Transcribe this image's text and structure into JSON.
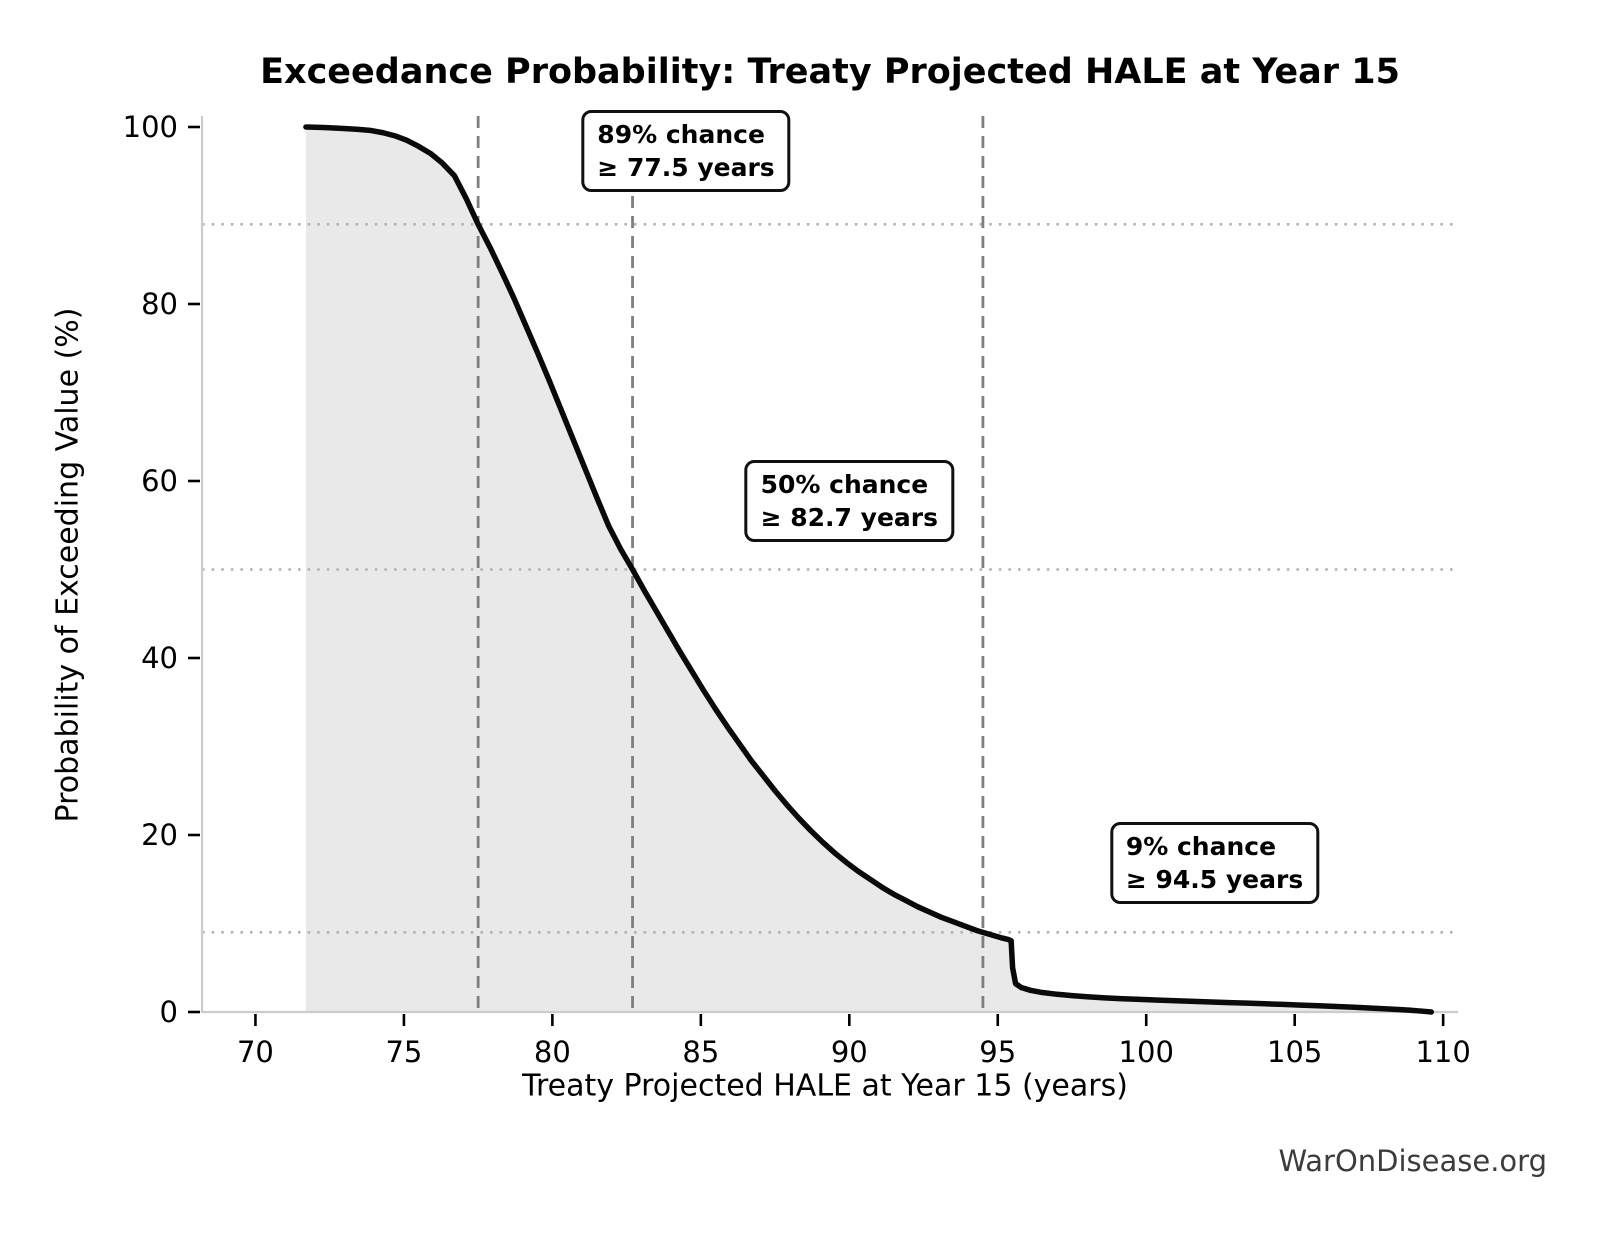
{
  "chart_data": {
    "type": "line",
    "title": "Exceedance Probability: Treaty Projected HALE at Year 15",
    "xlabel": "Treaty Projected HALE at Year 15 (years)",
    "ylabel": "Probability of Exceeding Value (%)",
    "watermark": "WarOnDisease.org",
    "xlim": [
      68.2,
      110.5
    ],
    "ylim": [
      0,
      101.3
    ],
    "x_ticks": [
      70,
      75,
      80,
      85,
      90,
      95,
      100,
      105,
      110
    ],
    "y_ticks": [
      0,
      20,
      40,
      60,
      80,
      100
    ],
    "grid": "off",
    "legend": "none",
    "reference_lines": {
      "vertical_dashed_x": [
        77.5,
        82.7,
        94.5
      ],
      "horizontal_dotted_y": [
        89,
        50,
        9
      ]
    },
    "annotations": [
      {
        "line1": "89% chance",
        "line2": "≥ 77.5 years",
        "prob_pct": 89,
        "value_years": 77.5,
        "box_center": [
          84.5,
          97.3
        ]
      },
      {
        "line1": "50% chance",
        "line2": "≥ 82.7 years",
        "prob_pct": 50,
        "value_years": 82.7,
        "box_center": [
          90.0,
          57.7
        ]
      },
      {
        "line1": "9% chance",
        "line2": "≥ 94.5 years",
        "prob_pct": 9,
        "value_years": 94.5,
        "box_center": [
          102.3,
          16.8
        ]
      }
    ],
    "series": [
      {
        "name": "exceedance-curve",
        "fill_under": true,
        "points": [
          [
            71.7,
            100
          ],
          [
            72.3,
            99.95
          ],
          [
            72.9,
            99.85
          ],
          [
            73.4,
            99.75
          ],
          [
            73.9,
            99.6
          ],
          [
            74.3,
            99.35
          ],
          [
            74.7,
            99.0
          ],
          [
            75.1,
            98.5
          ],
          [
            75.5,
            97.8
          ],
          [
            75.9,
            97.0
          ],
          [
            76.3,
            95.9
          ],
          [
            76.7,
            94.5
          ],
          [
            77.1,
            91.9
          ],
          [
            77.5,
            89.0
          ],
          [
            77.9,
            86.4
          ],
          [
            78.3,
            83.6
          ],
          [
            78.7,
            80.7
          ],
          [
            79.1,
            77.6
          ],
          [
            79.5,
            74.5
          ],
          [
            79.9,
            71.3
          ],
          [
            80.3,
            68.0
          ],
          [
            80.7,
            64.7
          ],
          [
            81.1,
            61.4
          ],
          [
            81.5,
            58.1
          ],
          [
            81.9,
            54.9
          ],
          [
            82.3,
            52.3
          ],
          [
            82.7,
            50.0
          ],
          [
            83.1,
            47.6
          ],
          [
            83.5,
            45.3
          ],
          [
            83.9,
            43.0
          ],
          [
            84.3,
            40.7
          ],
          [
            84.7,
            38.5
          ],
          [
            85.1,
            36.3
          ],
          [
            85.5,
            34.2
          ],
          [
            85.9,
            32.2
          ],
          [
            86.3,
            30.3
          ],
          [
            86.7,
            28.4
          ],
          [
            87.1,
            26.7
          ],
          [
            87.5,
            25.0
          ],
          [
            87.9,
            23.4
          ],
          [
            88.3,
            21.9
          ],
          [
            88.7,
            20.5
          ],
          [
            89.1,
            19.2
          ],
          [
            89.5,
            18.0
          ],
          [
            89.9,
            16.9
          ],
          [
            90.3,
            15.9
          ],
          [
            90.7,
            15.0
          ],
          [
            91.1,
            14.1
          ],
          [
            91.5,
            13.3
          ],
          [
            91.9,
            12.6
          ],
          [
            92.3,
            11.9
          ],
          [
            92.7,
            11.3
          ],
          [
            93.1,
            10.7
          ],
          [
            93.5,
            10.2
          ],
          [
            93.9,
            9.7
          ],
          [
            94.3,
            9.2
          ],
          [
            94.5,
            9.0
          ],
          [
            94.8,
            8.7
          ],
          [
            95.1,
            8.4
          ],
          [
            95.35,
            8.2
          ],
          [
            95.45,
            8.05
          ],
          [
            95.5,
            5.0
          ],
          [
            95.6,
            3.2
          ],
          [
            95.8,
            2.75
          ],
          [
            96.1,
            2.45
          ],
          [
            96.5,
            2.2
          ],
          [
            97.0,
            2.0
          ],
          [
            97.5,
            1.85
          ],
          [
            98.0,
            1.72
          ],
          [
            98.6,
            1.6
          ],
          [
            99.2,
            1.5
          ],
          [
            99.8,
            1.42
          ],
          [
            100.4,
            1.34
          ],
          [
            101.0,
            1.27
          ],
          [
            101.6,
            1.2
          ],
          [
            102.2,
            1.13
          ],
          [
            102.8,
            1.06
          ],
          [
            103.4,
            1.0
          ],
          [
            104.0,
            0.93
          ],
          [
            104.6,
            0.86
          ],
          [
            105.2,
            0.78
          ],
          [
            105.8,
            0.7
          ],
          [
            106.4,
            0.62
          ],
          [
            107.0,
            0.53
          ],
          [
            107.5,
            0.45
          ],
          [
            108.0,
            0.37
          ],
          [
            108.5,
            0.28
          ],
          [
            108.9,
            0.2
          ],
          [
            109.2,
            0.12
          ],
          [
            109.45,
            0.05
          ],
          [
            109.6,
            0.0
          ]
        ]
      }
    ],
    "colors": {
      "curve": "#0a0a0a",
      "fill": "#e9e9e9",
      "dashed_line": "#7f7f7f",
      "dotted_line": "#b3b3b3",
      "spine": "#cccccc",
      "tick": "#000000",
      "watermark": "#3c3c3c"
    }
  }
}
